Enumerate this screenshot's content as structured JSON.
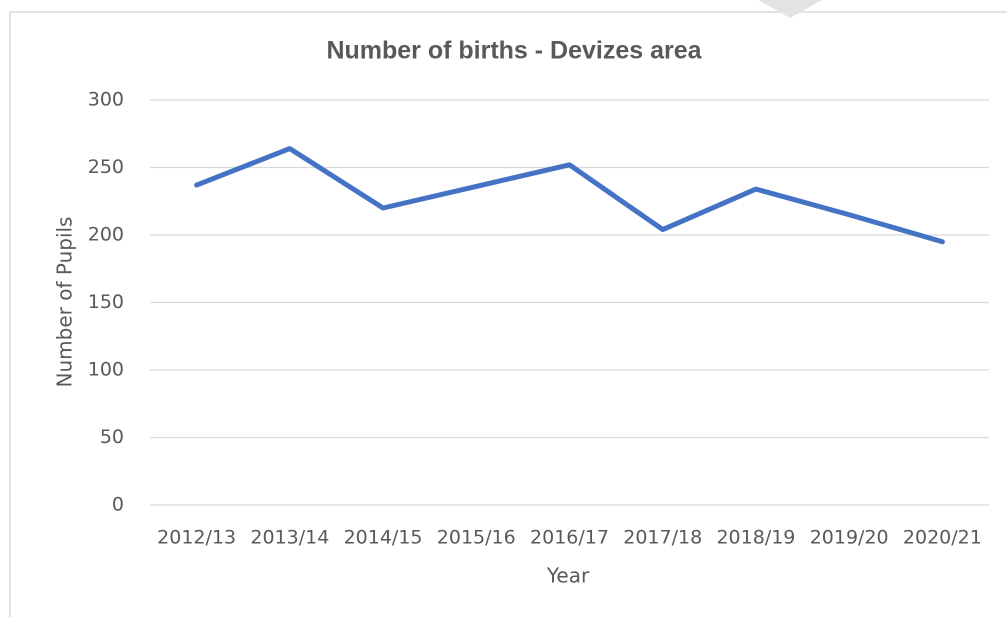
{
  "chart_data": {
    "type": "line",
    "title": "Number of births - Devizes area",
    "x_label": "Year",
    "y_label": "Number of Pupils",
    "categories": [
      "2012/13",
      "2013/14",
      "2014/15",
      "2015/16",
      "2016/17",
      "2017/18",
      "2018/19",
      "2019/20",
      "2020/21"
    ],
    "series": [
      {
        "name": "Number of births",
        "color": "#4472c4",
        "values": [
          237,
          264,
          220,
          236,
          252,
          204,
          234,
          215,
          195
        ]
      }
    ],
    "ylim": [
      0,
      300
    ],
    "yticks": [
      0,
      50,
      100,
      150,
      200,
      250,
      300
    ],
    "grid": true,
    "legend": false
  }
}
